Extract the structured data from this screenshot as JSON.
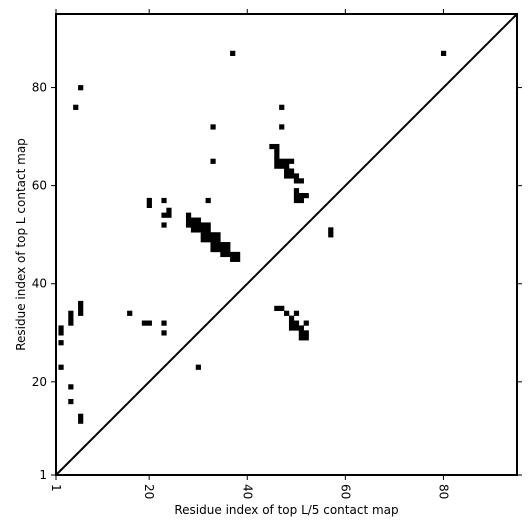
{
  "chart_data": {
    "type": "heatmap",
    "xlabel": "Residue index of top L/5 contact map",
    "ylabel": "Residue index of top L contact map",
    "xlim": [
      1,
      95
    ],
    "ylim": [
      1,
      95
    ],
    "x_ticks": [
      {
        "value": 1,
        "label": "1"
      },
      {
        "value": 20,
        "label": "20"
      },
      {
        "value": 40,
        "label": "40"
      },
      {
        "value": 60,
        "label": "60"
      },
      {
        "value": 80,
        "label": "80"
      }
    ],
    "y_ticks": [
      {
        "value": 1,
        "label": "1"
      },
      {
        "value": 20,
        "label": "20"
      },
      {
        "value": 40,
        "label": "40"
      },
      {
        "value": 60,
        "label": "60"
      },
      {
        "value": 80,
        "label": "80"
      }
    ],
    "diagonal": true,
    "cell_color": "#000000",
    "contacts": [
      [
        37,
        87
      ],
      [
        80,
        87
      ],
      [
        6,
        80
      ],
      [
        5,
        76
      ],
      [
        47,
        76
      ],
      [
        47,
        72
      ],
      [
        33,
        72
      ],
      [
        33,
        65
      ],
      [
        45,
        68
      ],
      [
        46,
        68
      ],
      [
        46,
        67
      ],
      [
        46,
        66
      ],
      [
        46,
        65
      ],
      [
        47,
        65
      ],
      [
        48,
        65
      ],
      [
        49,
        65
      ],
      [
        46,
        64
      ],
      [
        47,
        64
      ],
      [
        48,
        64
      ],
      [
        48,
        63
      ],
      [
        49,
        63
      ],
      [
        48,
        62
      ],
      [
        49,
        62
      ],
      [
        50,
        62
      ],
      [
        50,
        61
      ],
      [
        51,
        61
      ],
      [
        50,
        59
      ],
      [
        50,
        58
      ],
      [
        51,
        58
      ],
      [
        52,
        58
      ],
      [
        50,
        57
      ],
      [
        51,
        57
      ],
      [
        20,
        57
      ],
      [
        23,
        57
      ],
      [
        32,
        57
      ],
      [
        20,
        56
      ],
      [
        24,
        55
      ],
      [
        23,
        54
      ],
      [
        24,
        54
      ],
      [
        28,
        54
      ],
      [
        28,
        53
      ],
      [
        29,
        53
      ],
      [
        30,
        53
      ],
      [
        28,
        52
      ],
      [
        29,
        52
      ],
      [
        30,
        52
      ],
      [
        31,
        52
      ],
      [
        32,
        52
      ],
      [
        23,
        52
      ],
      [
        29,
        51
      ],
      [
        30,
        51
      ],
      [
        31,
        51
      ],
      [
        32,
        51
      ],
      [
        31,
        50
      ],
      [
        32,
        50
      ],
      [
        33,
        50
      ],
      [
        34,
        50
      ],
      [
        31,
        49
      ],
      [
        32,
        49
      ],
      [
        33,
        49
      ],
      [
        34,
        49
      ],
      [
        33,
        48
      ],
      [
        34,
        48
      ],
      [
        35,
        48
      ],
      [
        36,
        48
      ],
      [
        33,
        47
      ],
      [
        34,
        47
      ],
      [
        35,
        47
      ],
      [
        36,
        47
      ],
      [
        35,
        46
      ],
      [
        36,
        46
      ],
      [
        37,
        46
      ],
      [
        38,
        46
      ],
      [
        37,
        45
      ],
      [
        38,
        45
      ],
      [
        57,
        51
      ],
      [
        57,
        50
      ],
      [
        6,
        36
      ],
      [
        6,
        35
      ],
      [
        46,
        35
      ],
      [
        47,
        35
      ],
      [
        6,
        34
      ],
      [
        4,
        34
      ],
      [
        16,
        34
      ],
      [
        48,
        34
      ],
      [
        50,
        34
      ],
      [
        4,
        33
      ],
      [
        49,
        33
      ],
      [
        4,
        32
      ],
      [
        19,
        32
      ],
      [
        20,
        32
      ],
      [
        23,
        32
      ],
      [
        49,
        32
      ],
      [
        50,
        32
      ],
      [
        52,
        32
      ],
      [
        49,
        31
      ],
      [
        50,
        31
      ],
      [
        51,
        31
      ],
      [
        2,
        31
      ],
      [
        2,
        30
      ],
      [
        23,
        30
      ],
      [
        51,
        30
      ],
      [
        52,
        30
      ],
      [
        51,
        29
      ],
      [
        52,
        29
      ],
      [
        2,
        28
      ],
      [
        2,
        23
      ],
      [
        30,
        23
      ],
      [
        4,
        19
      ],
      [
        4,
        16
      ],
      [
        6,
        13
      ],
      [
        6,
        12
      ]
    ]
  }
}
